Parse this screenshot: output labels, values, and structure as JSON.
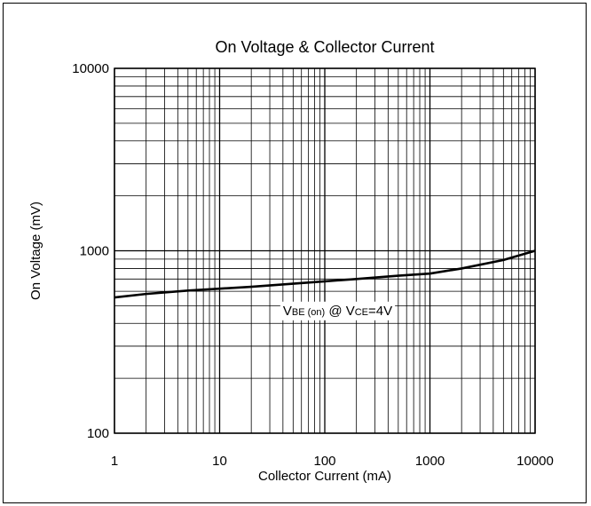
{
  "chart_data": {
    "type": "line",
    "title": "On Voltage & Collector Current",
    "xlabel": "Collector Current (mA)",
    "ylabel": "On Voltage (mV)",
    "x_scale": "log",
    "y_scale": "log",
    "xlim": [
      1,
      10000
    ],
    "ylim": [
      100,
      10000
    ],
    "x_ticks": [
      1,
      10,
      100,
      1000,
      10000
    ],
    "x_tick_labels": [
      "1",
      "10",
      "100",
      "1000",
      "10000"
    ],
    "y_ticks": [
      100,
      1000,
      10000
    ],
    "y_tick_labels": [
      "100",
      "1000",
      "10000"
    ],
    "grid": true,
    "series": [
      {
        "x": [
          1,
          2,
          5,
          10,
          20,
          50,
          100,
          200,
          500,
          1000,
          2000,
          5000,
          10000
        ],
        "y": [
          555,
          580,
          605,
          620,
          635,
          660,
          680,
          700,
          730,
          750,
          800,
          890,
          1000
        ]
      }
    ],
    "annotation": {
      "label_parts": [
        {
          "text": "V",
          "size": "large"
        },
        {
          "text": "BE (on)",
          "size": "small"
        },
        {
          "text": " @ ",
          "size": "large"
        },
        {
          "text": "V",
          "size": "large"
        },
        {
          "text": "CE",
          "size": "small"
        },
        {
          "text": "=4V",
          "size": "large"
        }
      ],
      "x": 40,
      "y": 460
    }
  }
}
